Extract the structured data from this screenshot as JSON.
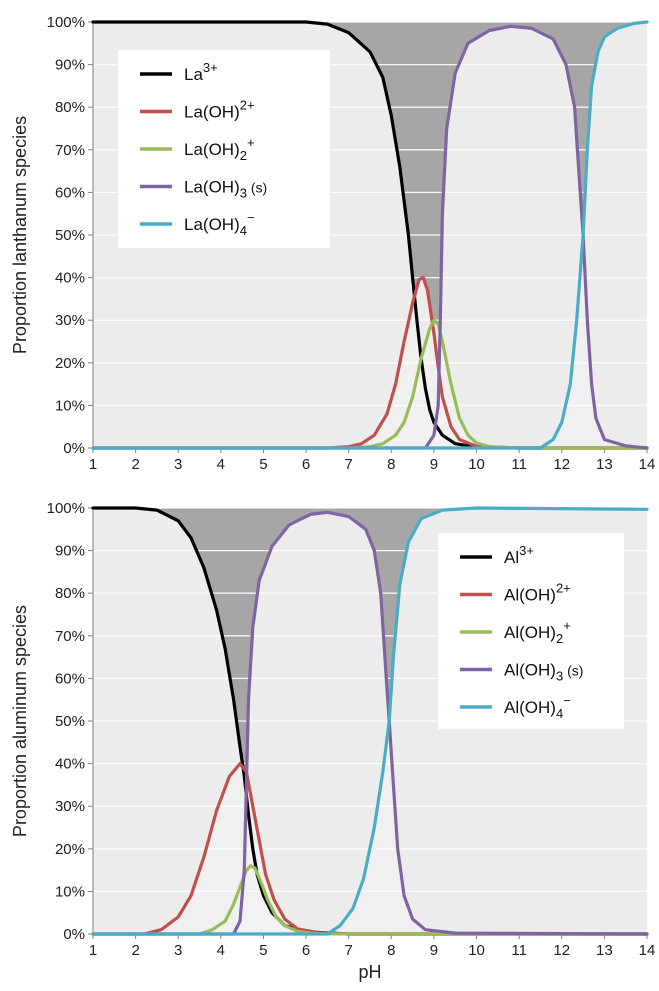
{
  "chart_data": [
    {
      "type": "line",
      "ylabel": "Proportion lanthanum species",
      "xlabel": "",
      "xlim": [
        1,
        14
      ],
      "ylim": [
        0,
        100
      ],
      "x_ticks": [
        "1",
        "2",
        "3",
        "4",
        "5",
        "6",
        "7",
        "8",
        "9",
        "10",
        "11",
        "12",
        "13",
        "14"
      ],
      "y_ticks": [
        "0%",
        "10%",
        "20%",
        "30%",
        "40%",
        "50%",
        "60%",
        "70%",
        "80%",
        "90%",
        "100%"
      ],
      "grid": true,
      "legend_position": "top-left",
      "series": [
        {
          "name": "La",
          "sup": "3+",
          "sub": "",
          "suffix": "",
          "color": "#000000",
          "points": [
            [
              1,
              100
            ],
            [
              6,
              100
            ],
            [
              6.5,
              99.5
            ],
            [
              7,
              97.5
            ],
            [
              7.5,
              93
            ],
            [
              7.8,
              87
            ],
            [
              8.0,
              78
            ],
            [
              8.2,
              66
            ],
            [
              8.4,
              50
            ],
            [
              8.5,
              40
            ],
            [
              8.6,
              30
            ],
            [
              8.7,
              21
            ],
            [
              8.8,
              14
            ],
            [
              8.9,
              9
            ],
            [
              9.0,
              6
            ],
            [
              9.2,
              3
            ],
            [
              9.5,
              1
            ],
            [
              10,
              0.2
            ],
            [
              11,
              0
            ],
            [
              14,
              0
            ]
          ]
        },
        {
          "name": "La(OH)",
          "sup": "2+",
          "sub": "",
          "suffix": "",
          "color": "#c0504d",
          "points": [
            [
              1,
              0
            ],
            [
              6.5,
              0
            ],
            [
              7,
              0.3
            ],
            [
              7.3,
              1
            ],
            [
              7.6,
              3
            ],
            [
              7.9,
              8
            ],
            [
              8.1,
              15
            ],
            [
              8.3,
              25
            ],
            [
              8.5,
              34
            ],
            [
              8.65,
              39.5
            ],
            [
              8.75,
              40
            ],
            [
              8.85,
              37
            ],
            [
              9.0,
              27
            ],
            [
              9.1,
              19
            ],
            [
              9.2,
              12
            ],
            [
              9.4,
              5
            ],
            [
              9.6,
              2
            ],
            [
              10,
              0.4
            ],
            [
              11,
              0
            ],
            [
              14,
              0
            ]
          ]
        },
        {
          "name": "La(OH)",
          "sup": "+",
          "sub": "2",
          "suffix": "",
          "color": "#9bbb59",
          "points": [
            [
              1,
              0
            ],
            [
              7,
              0
            ],
            [
              7.5,
              0.3
            ],
            [
              7.8,
              1
            ],
            [
              8.1,
              3
            ],
            [
              8.3,
              6
            ],
            [
              8.5,
              12
            ],
            [
              8.7,
              21
            ],
            [
              8.9,
              28
            ],
            [
              9.0,
              30
            ],
            [
              9.1,
              29
            ],
            [
              9.2,
              25
            ],
            [
              9.4,
              15
            ],
            [
              9.6,
              7
            ],
            [
              9.8,
              3
            ],
            [
              10.0,
              1.2
            ],
            [
              10.3,
              0.3
            ],
            [
              11,
              0
            ],
            [
              14,
              0
            ]
          ]
        },
        {
          "name": "La(OH)",
          "sup": "",
          "sub": "3",
          "suffix": " (s)",
          "color": "#8064a2",
          "points": [
            [
              1,
              0
            ],
            [
              8.8,
              0
            ],
            [
              9.0,
              3
            ],
            [
              9.1,
              10
            ],
            [
              9.15,
              30
            ],
            [
              9.2,
              55
            ],
            [
              9.3,
              75
            ],
            [
              9.5,
              88
            ],
            [
              9.8,
              95
            ],
            [
              10.3,
              98
            ],
            [
              10.8,
              99
            ],
            [
              11.3,
              98.5
            ],
            [
              11.8,
              96
            ],
            [
              12.1,
              90
            ],
            [
              12.3,
              80
            ],
            [
              12.4,
              65
            ],
            [
              12.5,
              50
            ],
            [
              12.6,
              30
            ],
            [
              12.7,
              15
            ],
            [
              12.8,
              7
            ],
            [
              13,
              2
            ],
            [
              13.5,
              0.5
            ],
            [
              14,
              0
            ]
          ]
        },
        {
          "name": "La(OH)",
          "sup": "−",
          "sub": "4",
          "suffix": "",
          "color": "#4bacc6",
          "points": [
            [
              1,
              0
            ],
            [
              11.5,
              0
            ],
            [
              11.8,
              2
            ],
            [
              12.0,
              6
            ],
            [
              12.2,
              15
            ],
            [
              12.35,
              30
            ],
            [
              12.5,
              50
            ],
            [
              12.6,
              70
            ],
            [
              12.7,
              85
            ],
            [
              12.85,
              93
            ],
            [
              13.0,
              96.5
            ],
            [
              13.3,
              98.5
            ],
            [
              13.7,
              99.7
            ],
            [
              14,
              100
            ]
          ]
        }
      ]
    },
    {
      "type": "line",
      "ylabel": "Proportion aluminum species",
      "xlabel": "pH",
      "xlim": [
        1,
        14
      ],
      "ylim": [
        0,
        100
      ],
      "x_ticks": [
        "1",
        "2",
        "3",
        "4",
        "5",
        "6",
        "7",
        "8",
        "9",
        "10",
        "11",
        "12",
        "13",
        "14"
      ],
      "y_ticks": [
        "0%",
        "10%",
        "20%",
        "30%",
        "40%",
        "50%",
        "60%",
        "70%",
        "80%",
        "90%",
        "100%"
      ],
      "grid": true,
      "legend_position": "top-right",
      "series": [
        {
          "name": "Al",
          "sup": "3+",
          "sub": "",
          "suffix": "",
          "color": "#000000",
          "points": [
            [
              1,
              100
            ],
            [
              2,
              100
            ],
            [
              2.5,
              99.5
            ],
            [
              3.0,
              97
            ],
            [
              3.3,
              93
            ],
            [
              3.6,
              86
            ],
            [
              3.9,
              76
            ],
            [
              4.1,
              67
            ],
            [
              4.3,
              55
            ],
            [
              4.45,
              44
            ],
            [
              4.55,
              37
            ],
            [
              4.65,
              28
            ],
            [
              4.75,
              20
            ],
            [
              4.85,
              14
            ],
            [
              5.0,
              9
            ],
            [
              5.2,
              5
            ],
            [
              5.5,
              2
            ],
            [
              6,
              0.5
            ],
            [
              7,
              0
            ],
            [
              14,
              0
            ]
          ]
        },
        {
          "name": "Al(OH)",
          "sup": "2+",
          "sub": "",
          "suffix": "",
          "color": "#c0504d",
          "points": [
            [
              1,
              0
            ],
            [
              2.2,
              0
            ],
            [
              2.6,
              1
            ],
            [
              3.0,
              4
            ],
            [
              3.3,
              9
            ],
            [
              3.6,
              18
            ],
            [
              3.9,
              29
            ],
            [
              4.2,
              37
            ],
            [
              4.45,
              40
            ],
            [
              4.6,
              38
            ],
            [
              4.75,
              30
            ],
            [
              4.9,
              22
            ],
            [
              5.05,
              14
            ],
            [
              5.25,
              8
            ],
            [
              5.5,
              3.5
            ],
            [
              5.8,
              1.2
            ],
            [
              6.3,
              0.3
            ],
            [
              7,
              0
            ],
            [
              14,
              0
            ]
          ]
        },
        {
          "name": "Al(OH)",
          "sup": "+",
          "sub": "2",
          "suffix": "",
          "color": "#9bbb59",
          "points": [
            [
              1,
              0
            ],
            [
              3.5,
              0
            ],
            [
              3.8,
              1
            ],
            [
              4.1,
              3
            ],
            [
              4.3,
              7
            ],
            [
              4.45,
              11
            ],
            [
              4.6,
              15
            ],
            [
              4.7,
              16
            ],
            [
              4.8,
              15.5
            ],
            [
              4.95,
              12
            ],
            [
              5.1,
              8
            ],
            [
              5.3,
              4
            ],
            [
              5.5,
              2
            ],
            [
              5.8,
              0.6
            ],
            [
              6.2,
              0.1
            ],
            [
              7,
              0
            ],
            [
              14,
              0
            ]
          ]
        },
        {
          "name": "Al(OH)",
          "sup": "",
          "sub": "3",
          "suffix": " (s)",
          "color": "#8064a2",
          "points": [
            [
              1,
              0
            ],
            [
              4.3,
              0
            ],
            [
              4.45,
              3
            ],
            [
              4.55,
              15
            ],
            [
              4.6,
              35
            ],
            [
              4.65,
              55
            ],
            [
              4.75,
              72
            ],
            [
              4.9,
              83
            ],
            [
              5.2,
              91
            ],
            [
              5.6,
              96
            ],
            [
              6.1,
              98.5
            ],
            [
              6.5,
              99
            ],
            [
              7.0,
              98
            ],
            [
              7.4,
              95
            ],
            [
              7.6,
              90
            ],
            [
              7.75,
              80
            ],
            [
              7.85,
              65
            ],
            [
              7.95,
              50
            ],
            [
              8.05,
              35
            ],
            [
              8.15,
              20
            ],
            [
              8.3,
              9
            ],
            [
              8.5,
              3.5
            ],
            [
              8.8,
              1
            ],
            [
              9.5,
              0.2
            ],
            [
              14,
              0
            ]
          ]
        },
        {
          "name": "Al(OH)",
          "sup": "−",
          "sub": "4",
          "suffix": "",
          "color": "#4bacc6",
          "points": [
            [
              1,
              0
            ],
            [
              6.5,
              0
            ],
            [
              6.8,
              2
            ],
            [
              7.1,
              6
            ],
            [
              7.35,
              13
            ],
            [
              7.6,
              25
            ],
            [
              7.8,
              38
            ],
            [
              7.95,
              50
            ],
            [
              8.05,
              65
            ],
            [
              8.2,
              82
            ],
            [
              8.4,
              92
            ],
            [
              8.7,
              97.5
            ],
            [
              9.2,
              99.5
            ],
            [
              10,
              100
            ],
            [
              14,
              99.7
            ]
          ]
        }
      ]
    }
  ]
}
